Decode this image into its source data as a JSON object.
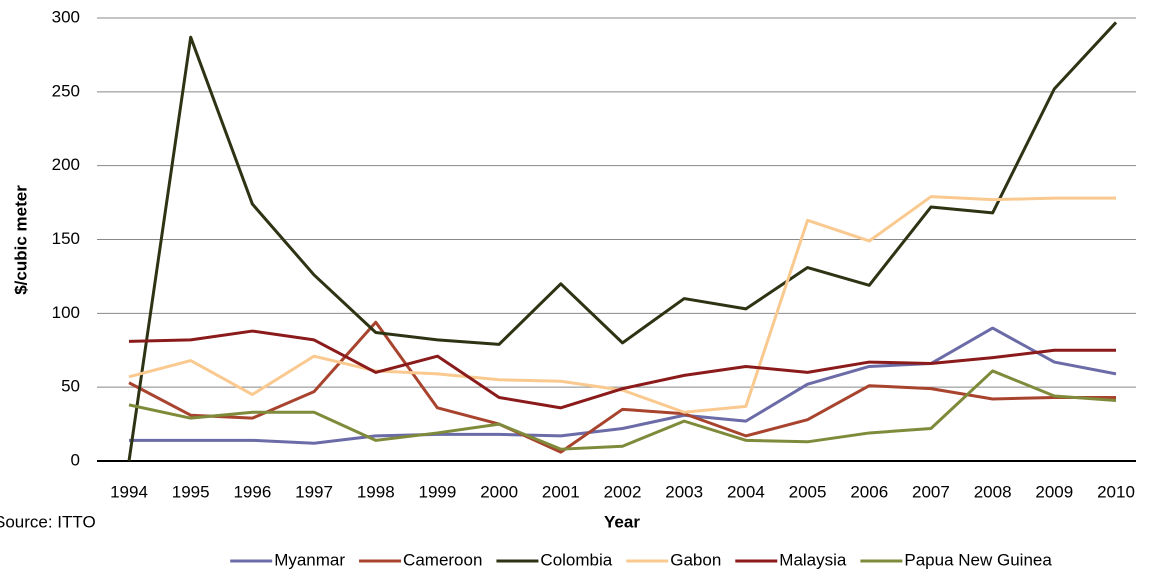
{
  "chart_data": {
    "type": "line",
    "y_label": "$/cubic meter",
    "x_label": "Year",
    "source": "Source: ITTO",
    "categories": [
      "1994",
      "1995",
      "1996",
      "1997",
      "1998",
      "1999",
      "2000",
      "2001",
      "2002",
      "2003",
      "2004",
      "2005",
      "2006",
      "2007",
      "2008",
      "2009",
      "2010"
    ],
    "series": [
      {
        "name": "Myanmar",
        "color": "#6b6ba8",
        "values": [
          14,
          14,
          14,
          12,
          17,
          18,
          18,
          17,
          22,
          31,
          27,
          52,
          64,
          66,
          90,
          67,
          59
        ]
      },
      {
        "name": "Cameroon",
        "color": "#a8432e",
        "values": [
          53,
          31,
          29,
          47,
          94,
          36,
          25,
          6,
          35,
          32,
          17,
          28,
          51,
          49,
          42,
          43,
          43
        ]
      },
      {
        "name": "Colombia",
        "color": "#2e3314",
        "values": [
          0,
          287,
          174,
          126,
          87,
          82,
          79,
          120,
          80,
          110,
          103,
          131,
          119,
          172,
          168,
          252,
          297
        ]
      },
      {
        "name": "Gabon",
        "color": "#fac990",
        "values": [
          57,
          68,
          45,
          71,
          61,
          59,
          55,
          54,
          48,
          33,
          37,
          163,
          149,
          179,
          177,
          178,
          178
        ]
      },
      {
        "name": "Malaysia",
        "color": "#8b1a1a",
        "values": [
          81,
          82,
          88,
          82,
          60,
          71,
          43,
          36,
          49,
          58,
          64,
          60,
          67,
          66,
          70,
          75,
          75
        ]
      },
      {
        "name": "Papua New Guinea",
        "color": "#7f8a3a",
        "values": [
          38,
          29,
          33,
          33,
          14,
          19,
          25,
          8,
          10,
          27,
          14,
          13,
          19,
          22,
          61,
          44,
          41
        ]
      }
    ],
    "ylim": [
      0,
      300
    ],
    "yticks": [
      0,
      50,
      100,
      150,
      200,
      250,
      300
    ],
    "grid": true,
    "legend": "bottom"
  }
}
